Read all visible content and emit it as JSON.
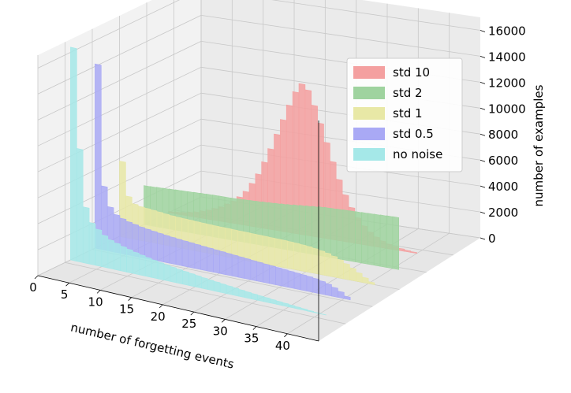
{
  "chart_data": {
    "type": "bar3d",
    "title": "",
    "xlabel": "number of forgetting events",
    "zlabel": "number of examples",
    "x_ticks": [
      "0",
      "5",
      "10",
      "15",
      "20",
      "25",
      "30",
      "35",
      "40"
    ],
    "z_ticks": [
      "0",
      "2000",
      "4000",
      "6000",
      "8000",
      "10000",
      "12000",
      "14000",
      "16000"
    ],
    "xlim": [
      0,
      45
    ],
    "zlim": [
      0,
      17000
    ],
    "grid": true,
    "legend_position": "top-right",
    "colors": {
      "std 10": "#f4a0a0",
      "std 2": "#9fd39f",
      "std 1": "#e8e8a6",
      "std 0.5": "#a9a9f5",
      "no noise": "#a5e8e8",
      "pane": "#f2f2f2",
      "grid": "#c8c8c8"
    },
    "series": [
      {
        "name": "std 10",
        "values": [
          100,
          150,
          200,
          300,
          400,
          550,
          700,
          900,
          1100,
          1400,
          1700,
          2100,
          2600,
          3300,
          4100,
          5100,
          6200,
          7400,
          8600,
          9800,
          10900,
          11600,
          11200,
          10100,
          8800,
          7400,
          6000,
          4700,
          3600,
          2700,
          2000,
          1450,
          1050,
          750,
          520,
          360,
          250,
          170,
          110,
          70
        ]
      },
      {
        "name": "std 2",
        "values": [
          3000,
          3020,
          3040,
          3060,
          3080,
          3100,
          3120,
          3140,
          3160,
          3180,
          3200,
          3210,
          3220,
          3220,
          3230,
          3250,
          3280,
          3300,
          3330,
          3360,
          3390,
          3420,
          3460,
          3500,
          3550,
          3600,
          3650,
          3700,
          3750,
          3780,
          3800,
          3820,
          3840,
          3860,
          3880,
          3900,
          3920,
          3940,
          3960,
          3980,
          4000
        ]
      },
      {
        "name": "std 1",
        "values": [
          5800,
          3200,
          2700,
          2600,
          2550,
          2500,
          2450,
          2400,
          2350,
          2320,
          2300,
          2280,
          2260,
          2240,
          2220,
          2210,
          2200,
          2190,
          2180,
          2170,
          2160,
          2150,
          2140,
          2130,
          2120,
          2110,
          2100,
          2080,
          2060,
          2020,
          1980,
          1920,
          1840,
          1740,
          1600,
          1420,
          1200,
          950,
          680,
          400,
          150
        ]
      },
      {
        "name": "std 0.5",
        "values": [
          14200,
          4900,
          3400,
          2900,
          2700,
          2550,
          2450,
          2350,
          2280,
          2220,
          2160,
          2100,
          2050,
          2000,
          1960,
          1920,
          1880,
          1840,
          1800,
          1760,
          1720,
          1680,
          1640,
          1600,
          1560,
          1520,
          1480,
          1440,
          1400,
          1360,
          1320,
          1280,
          1240,
          1200,
          1160,
          1100,
          1000,
          880,
          700,
          480,
          200
        ]
      },
      {
        "name": "no noise",
        "values": [
          16400,
          8700,
          4300,
          3200,
          2800,
          2450,
          2200,
          2050,
          1900,
          1780,
          1660,
          1560,
          1460,
          1380,
          1300,
          1220,
          1150,
          1080,
          1020,
          960,
          900,
          840,
          780,
          730,
          680,
          630,
          580,
          530,
          480,
          430,
          390,
          350,
          310,
          270,
          230,
          190,
          150,
          110,
          70,
          35,
          10
        ]
      }
    ]
  }
}
